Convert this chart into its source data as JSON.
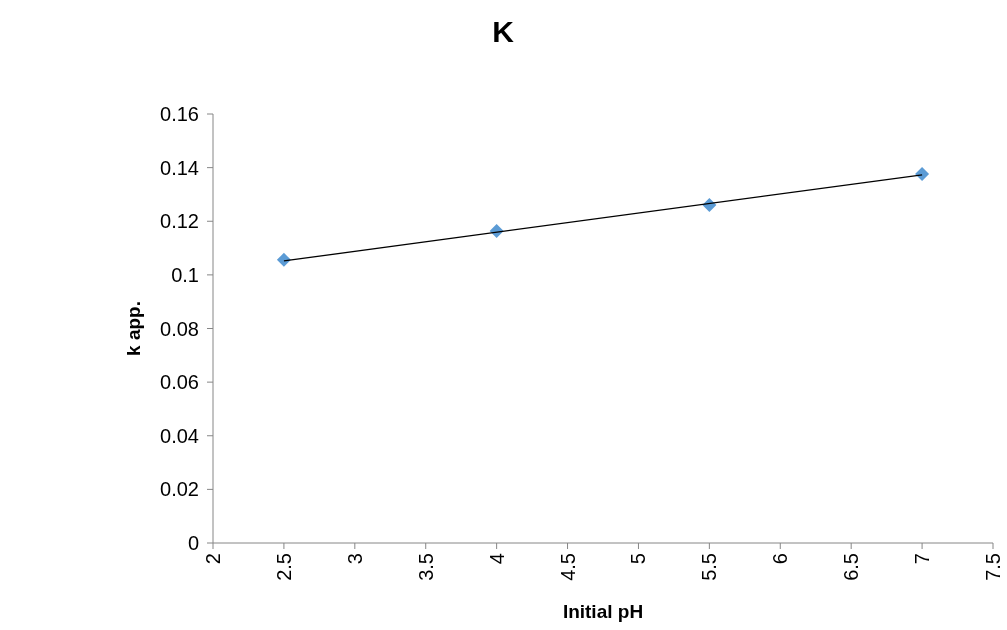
{
  "chart_data": {
    "type": "scatter",
    "title": "K",
    "xlabel": "Initial pH",
    "ylabel": "k app.",
    "xlim": [
      2,
      7.5
    ],
    "xticks": [
      2,
      2.5,
      3,
      3.5,
      4,
      4.5,
      5,
      5.5,
      6,
      6.5,
      7,
      7.5
    ],
    "ylim": [
      0,
      0.16
    ],
    "yticks": [
      0,
      0.02,
      0.04,
      0.06,
      0.08,
      0.1,
      0.12,
      0.14,
      0.16
    ],
    "marker": "diamond",
    "grid": false,
    "series": [
      {
        "color": "#5b9bd5",
        "x": [
          2.5,
          4,
          5.5,
          7
        ],
        "values": [
          0.1056,
          0.1164,
          0.1261,
          0.1376
        ]
      },
      {
        "type": "line",
        "color": "#000000",
        "marker": "none",
        "line_style": "solid",
        "x": [
          2.5,
          7
        ],
        "values": [
          0.1052,
          0.1373
        ]
      }
    ]
  }
}
